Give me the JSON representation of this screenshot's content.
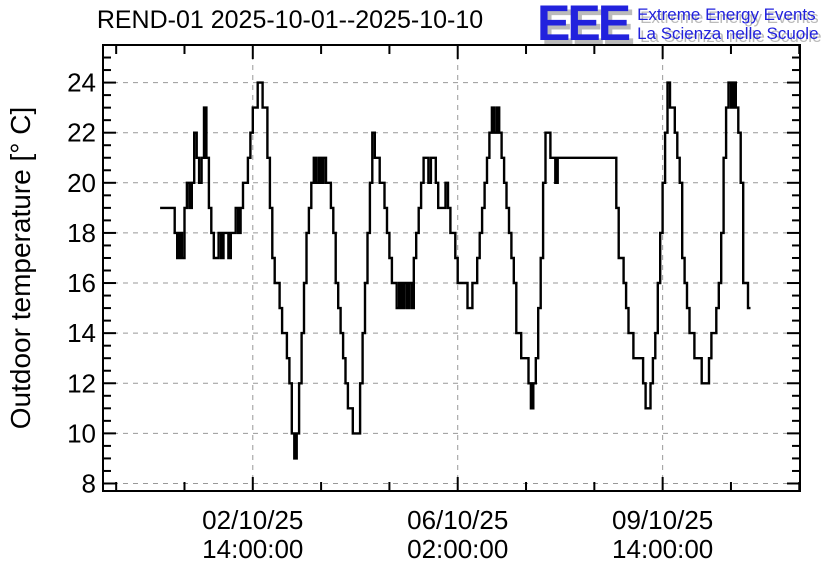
{
  "header": {
    "title": "REND-01 2025-10-01--2025-10-10",
    "logo": {
      "acronym": "EEE",
      "line1": "Extreme Energy Events",
      "line2": "La Scienza nelle Scuole",
      "color": "#2222dd",
      "shadow_color": "#bbbbbb"
    }
  },
  "chart_data": {
    "type": "line",
    "style": "step",
    "title": "REND-01 2025-10-01--2025-10-10",
    "xlabel": "",
    "ylabel": "Outdoor temperature [° C]",
    "ylim": [
      7.7,
      25.5
    ],
    "y_major_ticks": [
      8,
      10,
      12,
      14,
      16,
      18,
      20,
      22,
      24
    ],
    "y_minor_step": 0.5,
    "grid": true,
    "legend": "none",
    "hours_are_since": "2025-10-01 00:00:00",
    "x_domain_hours": [
      -23.4,
      262.3
    ],
    "x_labeled_ticks": [
      {
        "hour": 38,
        "label_date": "02/10/25",
        "label_time": "14:00:00"
      },
      {
        "hour": 122,
        "label_date": "06/10/25",
        "label_time": "02:00:00"
      },
      {
        "hour": 206,
        "label_date": "09/10/25",
        "label_time": "14:00:00"
      }
    ],
    "x_minor_tick_start_hour": -18,
    "x_minor_tick_step_hours": 28,
    "line_color": "#000000",
    "grid_color": "#999999",
    "frame_color": "#000000",
    "background_color": "#ffffff",
    "series": [
      {
        "name": "outdoor-temperature-degC",
        "start_hour": 0,
        "step_hours": 1,
        "values": [
          19,
          19,
          19,
          19,
          19,
          19,
          18,
          17,
          18,
          17,
          19,
          20,
          19,
          20,
          22,
          21,
          20,
          21,
          23,
          21,
          19,
          18,
          17,
          17,
          18,
          17,
          18,
          18,
          17,
          18,
          18,
          19,
          18,
          19,
          20,
          20,
          21,
          22,
          23,
          23,
          24,
          24,
          23,
          23,
          21,
          19,
          17,
          16,
          16,
          15,
          14,
          14,
          13,
          12,
          10,
          9,
          10,
          12,
          14,
          16,
          18,
          19,
          20,
          21,
          20,
          21,
          20,
          21,
          20,
          20,
          19,
          18,
          16,
          15,
          14,
          13,
          12,
          11,
          11,
          10,
          10,
          10,
          12,
          14,
          16,
          18,
          20,
          22,
          21,
          21,
          20,
          20,
          19,
          18,
          17,
          16,
          16,
          15,
          16,
          15,
          16,
          15,
          16,
          15,
          17,
          18,
          19,
          20,
          21,
          21,
          20,
          21,
          21,
          20,
          19,
          19,
          19,
          20,
          19,
          18,
          18,
          17,
          16,
          16,
          16,
          16,
          15,
          15,
          16,
          16,
          17,
          18,
          19,
          20,
          21,
          22,
          23,
          22,
          23,
          22,
          21,
          20,
          19,
          18,
          17,
          16,
          14,
          14,
          13,
          13,
          13,
          12,
          11,
          12,
          13,
          15,
          17,
          20,
          22,
          22,
          21,
          21,
          20,
          21,
          21,
          21,
          21,
          21,
          21,
          21,
          21,
          21,
          21,
          21,
          21,
          21,
          21,
          21,
          21,
          21,
          21,
          21,
          21,
          21,
          21,
          21,
          21,
          19,
          17,
          17,
          16,
          15,
          14,
          14,
          13,
          13,
          13,
          13,
          12,
          11,
          11,
          12,
          13,
          14,
          16,
          18,
          20,
          22,
          24,
          23,
          23,
          22,
          21,
          20,
          17,
          16,
          15,
          14,
          14,
          13,
          13,
          13,
          12,
          12,
          12,
          13,
          14,
          14,
          15,
          16,
          18,
          21,
          23,
          24,
          23,
          24,
          23,
          22,
          20,
          16,
          16,
          15
        ]
      }
    ]
  }
}
